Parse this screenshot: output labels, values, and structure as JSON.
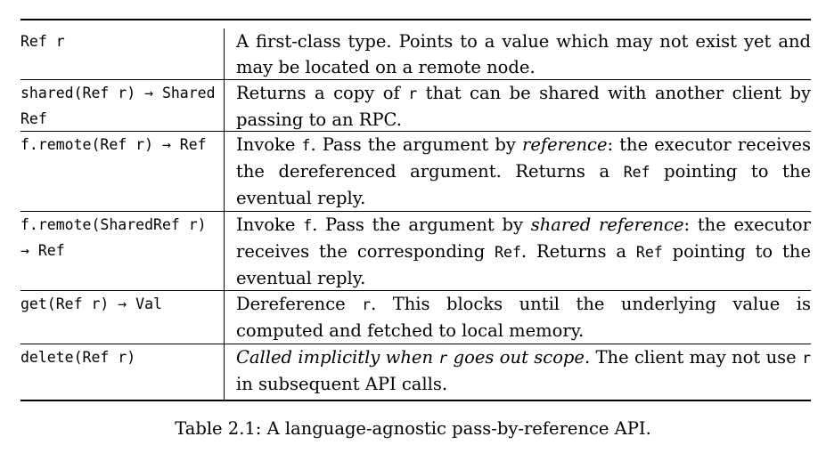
{
  "table": {
    "rows": [
      {
        "api": "Ref r",
        "desc": [
          {
            "t": "A first-class type.  Points to a value which may not exist yet and may be located on a remote node."
          }
        ]
      },
      {
        "api": "shared(Ref r) → SharedRef",
        "desc": [
          {
            "t": "Returns a copy of "
          },
          {
            "t": "r",
            "mono": true
          },
          {
            "t": " that can be shared with another client by passing to an RPC."
          }
        ]
      },
      {
        "api": "f.remote(Ref r) → Ref",
        "desc": [
          {
            "t": "Invoke "
          },
          {
            "t": "f",
            "mono": true
          },
          {
            "t": ".  Pass the argument by "
          },
          {
            "t": "reference",
            "em": true
          },
          {
            "t": ":  the executor receives the dereferenced argument.  Returns a "
          },
          {
            "t": "Ref",
            "mono": true
          },
          {
            "t": " pointing to the eventual reply."
          }
        ]
      },
      {
        "api": "f.remote(SharedRef r) → Ref",
        "desc": [
          {
            "t": "Invoke "
          },
          {
            "t": "f",
            "mono": true
          },
          {
            "t": ". Pass the argument by "
          },
          {
            "t": "shared reference",
            "em": true
          },
          {
            "t": ": the executor receives the corresponding "
          },
          {
            "t": "Ref",
            "mono": true
          },
          {
            "t": ". Returns a "
          },
          {
            "t": "Ref",
            "mono": true
          },
          {
            "t": " pointing to the eventual reply."
          }
        ]
      },
      {
        "api": "get(Ref r) → Val",
        "desc": [
          {
            "t": "Dereference "
          },
          {
            "t": "r",
            "mono": true
          },
          {
            "t": ".  This blocks until the underlying value is computed and fetched to local memory."
          }
        ]
      },
      {
        "api": "delete(Ref r)",
        "desc": [
          {
            "t": "Called implicitly when ",
            "em": true
          },
          {
            "t": "r",
            "mono": true,
            "em": true
          },
          {
            "t": " goes out scope.",
            "em": true
          },
          {
            "t": " The client may not use "
          },
          {
            "t": "r",
            "mono": true
          },
          {
            "t": " in subsequent API calls."
          }
        ]
      }
    ]
  },
  "caption": "Table 2.1: A language-agnostic pass-by-reference API."
}
